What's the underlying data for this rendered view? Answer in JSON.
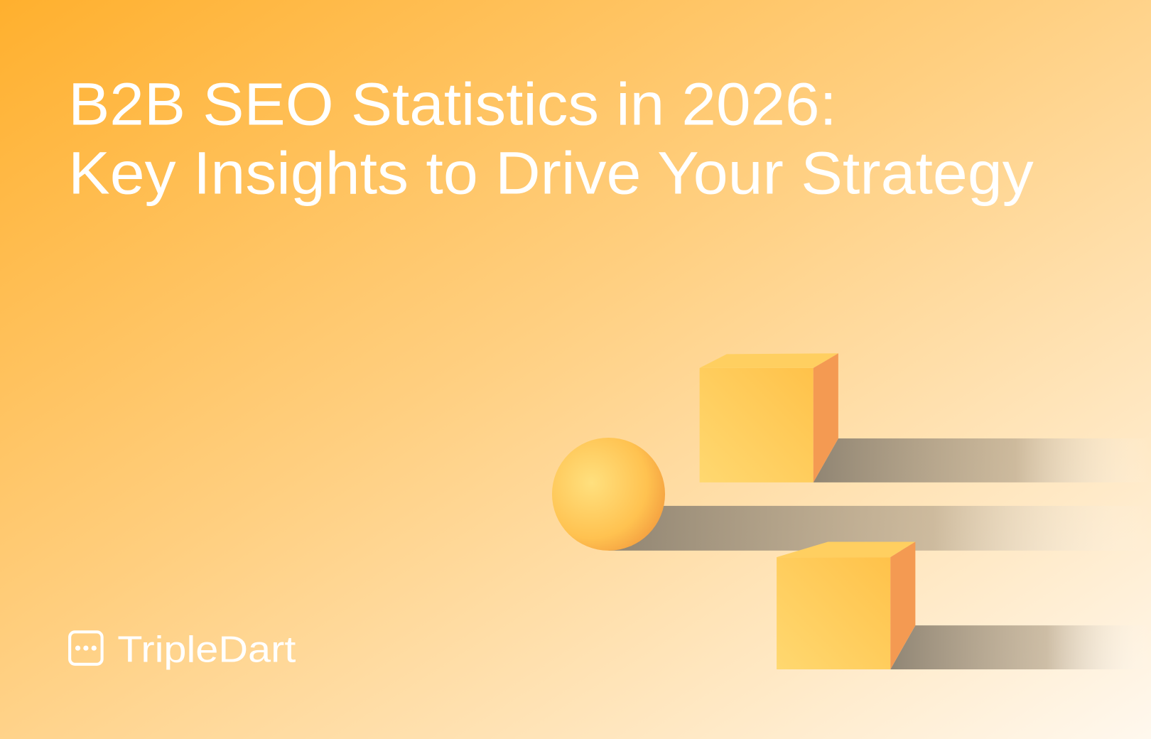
{
  "title": {
    "line1": "B2B SEO Statistics in 2026:",
    "line2": "Key Insights to Drive Your Strategy"
  },
  "brand": "TripleDart"
}
